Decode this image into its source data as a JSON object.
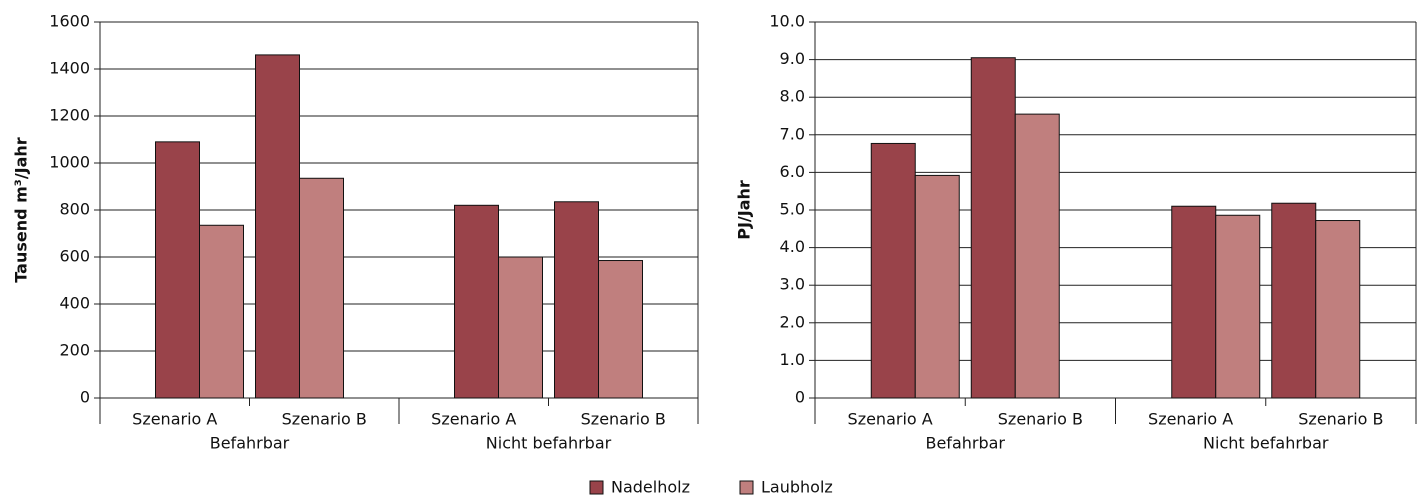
{
  "chart_data": [
    {
      "type": "bar",
      "y_label": "Tausend m³/Jahr",
      "categories": [
        "Szenario A",
        "Szenario B",
        "Szenario A",
        "Szenario B"
      ],
      "groups": [
        "Befahrbar",
        "Nicht befahrbar"
      ],
      "series": [
        {
          "name": "Nadelholz",
          "color": "#99434a",
          "values": [
            1090,
            1460,
            820,
            835
          ]
        },
        {
          "name": "Laubholz",
          "color": "#c07f7e",
          "values": [
            735,
            935,
            600,
            585
          ]
        }
      ],
      "ylim": [
        0,
        1600
      ],
      "yticks": [
        0,
        200,
        400,
        600,
        800,
        1000,
        1200,
        1400,
        1600
      ],
      "grid": true
    },
    {
      "type": "bar",
      "y_label": "PJ/Jahr",
      "categories": [
        "Szenario A",
        "Szenario B",
        "Szenario A",
        "Szenario B"
      ],
      "groups": [
        "Befahrbar",
        "Nicht befahrbar"
      ],
      "series": [
        {
          "color": "#99434a",
          "values": [
            6.77,
            9.05,
            5.1,
            5.18
          ]
        },
        {
          "color": "#c07f7e",
          "values": [
            5.92,
            7.55,
            4.86,
            4.72
          ]
        }
      ],
      "ylim": [
        0,
        10
      ],
      "yticks": [
        0,
        {
          "value": 1,
          "label": "1.0"
        },
        {
          "value": 2,
          "label": "2.0"
        },
        {
          "value": 3,
          "label": "3.0"
        },
        {
          "value": 4,
          "label": "4.0"
        },
        {
          "value": 5,
          "label": "5.0"
        },
        {
          "value": 6,
          "label": "6.0"
        },
        {
          "value": 7,
          "label": "7.0"
        },
        {
          "value": 8,
          "label": "8.0"
        },
        {
          "value": 9,
          "label": "9.0"
        },
        {
          "value": 10,
          "label": "10.0"
        }
      ],
      "grid": true
    }
  ]
}
